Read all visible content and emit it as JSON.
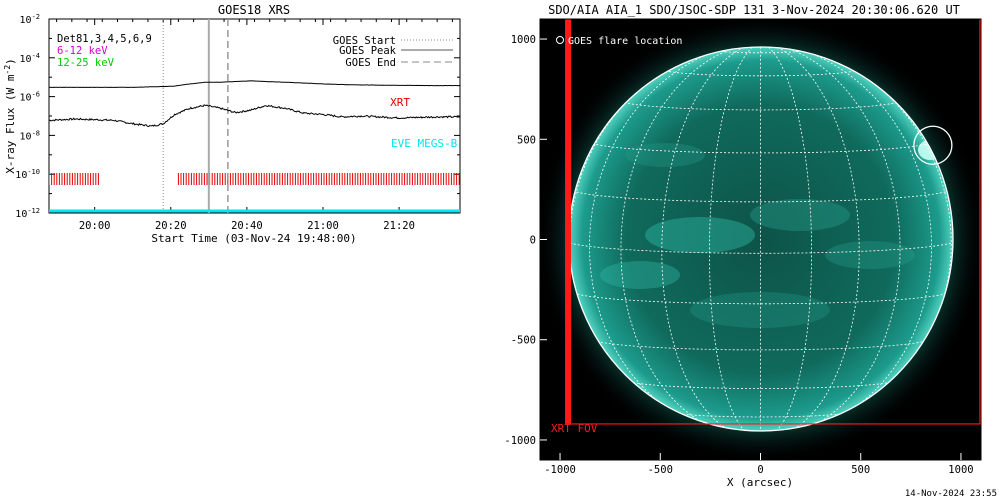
{
  "left_chart": {
    "title": "GOES18 XRS",
    "ylabel": "X-ray Flux (W m",
    "ylabel_exp": "-2",
    "ylabel_close": ")",
    "xlabel": "Start Time (03-Nov-24 19:48:00)",
    "y_ticks": [
      {
        "base": "10",
        "exp": "-2"
      },
      {
        "base": "10",
        "exp": "-4"
      },
      {
        "base": "10",
        "exp": "-6"
      },
      {
        "base": "10",
        "exp": "-8"
      },
      {
        "base": "10",
        "exp": "-10"
      },
      {
        "base": "10",
        "exp": "-12"
      }
    ],
    "x_ticks": [
      "20:00",
      "20:20",
      "20:40",
      "21:00",
      "21:20"
    ],
    "legend_left": [
      {
        "text": "Det81,3,4,5,6,9",
        "color": "#000000"
      },
      {
        "text": "6-12 keV",
        "color": "#d400d4"
      },
      {
        "text": "12-25 keV",
        "color": "#00cc00"
      }
    ],
    "legend_right": [
      {
        "text": "GOES Start",
        "style": "dotted"
      },
      {
        "text": "GOES Peak",
        "style": "solid"
      },
      {
        "text": "GOES End",
        "style": "dashed"
      }
    ],
    "xrt_label": "XRT",
    "eve_label": "EVE MEGS-B",
    "colors": {
      "xrt": "#e60000",
      "eve": "#00e5ee",
      "curve": "#000000"
    }
  },
  "chart_data": [
    {
      "type": "line",
      "title": "GOES18 XRS",
      "xlabel": "Start Time (03-Nov-24 19:48:00)",
      "ylabel": "X-ray Flux (W m-2)",
      "yscale": "log",
      "ylim": [
        1e-12,
        0.01
      ],
      "xlim": [
        "19:48",
        "21:36"
      ],
      "x": [
        "19:48",
        "19:55",
        "20:00",
        "20:05",
        "20:10",
        "20:15",
        "20:18",
        "20:21",
        "20:25",
        "20:29",
        "20:33",
        "20:37",
        "20:41",
        "20:45",
        "20:50",
        "20:55",
        "21:00",
        "21:05",
        "21:10",
        "21:20",
        "21:30",
        "21:36"
      ],
      "series": [
        {
          "name": "",
          "values": [
            3e-06,
            3e-06,
            3e-06,
            3e-06,
            3e-06,
            3.2e-06,
            3.3e-06,
            3.5e-06,
            4.5e-06,
            5.5e-06,
            5.5e-06,
            6e-06,
            6.5e-06,
            6e-06,
            5.5e-06,
            5e-06,
            4.5e-06,
            4.2e-06,
            4e-06,
            3.8e-06,
            3.7e-06,
            3.7e-06
          ]
        },
        {
          "name": "",
          "values": [
            6e-08,
            7e-08,
            6.5e-08,
            6e-08,
            4e-08,
            3e-08,
            4e-08,
            1.2e-07,
            2.5e-07,
            3.5e-07,
            2.5e-07,
            1.5e-07,
            2e-07,
            3.5e-07,
            2.5e-07,
            1.4e-07,
            1.2e-07,
            9e-08,
            1e-07,
            8e-08,
            9e-08,
            9e-08
          ]
        }
      ],
      "markers": {
        "goes_start": "20:18",
        "goes_peak": "20:30",
        "goes_end": "20:35"
      }
    },
    {
      "type": "scatter",
      "title": "SDO/AIA AIA_1 SDO/JSOC-SDP 131  3-Nov-2024 20:30:06.620 UT",
      "xlabel": "X (arcsec)",
      "ylabel": "",
      "xlim": [
        -1100,
        1100
      ],
      "ylim": [
        -1100,
        1100
      ],
      "x_ticks": [
        -1000,
        -500,
        0,
        500,
        1000
      ],
      "y_ticks": [
        -1000,
        -500,
        0,
        500,
        1000
      ],
      "solar_radius_arcsec": 985,
      "flare_location": {
        "x": 860,
        "y": 470,
        "radius": 95
      },
      "xrt_fov": {
        "x_left": -960,
        "x_right": 1120,
        "y_bottom": -920,
        "y_top": 1100
      }
    }
  ],
  "right_chart": {
    "title": "SDO/AIA AIA_1 SDO/JSOC-SDP 131  3-Nov-2024 20:30:06.620 UT",
    "xlabel": "X (arcsec)",
    "x_ticks": [
      "-1000",
      "-500",
      "0",
      "500",
      "1000"
    ],
    "y_ticks": [
      "1000",
      "500",
      "0",
      "-500",
      "-1000"
    ],
    "flare_label": "GOES flare location",
    "fov_label": "XRT FOV",
    "timestamp": "14-Nov-2024 23:55",
    "colors": {
      "disk": "#1fa89a",
      "disk_dark": "#06382f",
      "fov": "#ff1a1a",
      "grid": "#ffffff"
    }
  }
}
